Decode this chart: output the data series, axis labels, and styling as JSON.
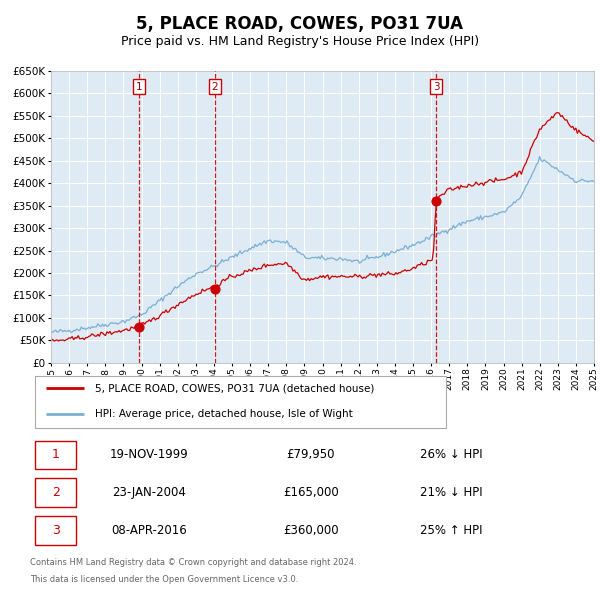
{
  "title": "5, PLACE ROAD, COWES, PO31 7UA",
  "subtitle": "Price paid vs. HM Land Registry's House Price Index (HPI)",
  "sale_prices": [
    79950,
    165000,
    360000
  ],
  "sale_labels": [
    "1",
    "2",
    "3"
  ],
  "sale_year_vals": [
    1999.88,
    2004.06,
    2016.27
  ],
  "sale_annotations": [
    {
      "label": "1",
      "date": "19-NOV-1999",
      "price": "£79,950",
      "hpi": "26% ↓ HPI"
    },
    {
      "label": "2",
      "date": "23-JAN-2004",
      "price": "£165,000",
      "hpi": "21% ↓ HPI"
    },
    {
      "label": "3",
      "date": "08-APR-2016",
      "price": "£360,000",
      "hpi": "25% ↑ HPI"
    }
  ],
  "legend_line1": "5, PLACE ROAD, COWES, PO31 7UA (detached house)",
  "legend_line2": "HPI: Average price, detached house, Isle of Wight",
  "footer_line1": "Contains HM Land Registry data © Crown copyright and database right 2024.",
  "footer_line2": "This data is licensed under the Open Government Licence v3.0.",
  "property_color": "#cc0000",
  "hpi_color": "#7aafd4",
  "background_color": "#deeaf4",
  "vline_color": "#cc0000",
  "ylim": [
    0,
    650000
  ],
  "ylabel_ticks": [
    0,
    50000,
    100000,
    150000,
    200000,
    250000,
    300000,
    350000,
    400000,
    450000,
    500000,
    550000,
    600000,
    650000
  ],
  "year_start": 1995,
  "year_end": 2025,
  "title_fontsize": 12,
  "subtitle_fontsize": 9
}
